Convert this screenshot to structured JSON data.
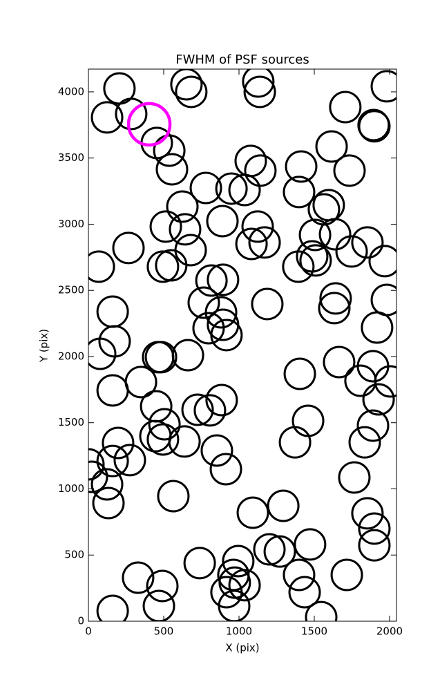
{
  "chart_data": {
    "type": "scatter",
    "title": "FWHM of PSF sources",
    "x_label": "X (pix)",
    "y_label": "Y (pix)",
    "xlim": [
      0,
      2046
    ],
    "ylim": [
      0,
      4172
    ],
    "xticks": [
      0,
      500,
      1000,
      1500,
      2000
    ],
    "yticks": [
      0,
      500,
      1000,
      1500,
      2000,
      2500,
      3000,
      3500,
      4000
    ],
    "series": [
      {
        "color": "#000000",
        "x": [
          206,
          124,
          284,
          454,
          537,
          555,
          651,
          683,
          1128,
          1138,
          1706,
          1894,
          1982,
          1615,
          1734,
          1413,
          1399,
          1596,
          1564,
          1078,
          1142,
          1037,
          950,
          780,
          624,
          514,
          642,
          679,
          890,
          1124,
          1083,
          1170,
          1505,
          1638,
          1853,
          1748,
          1968,
          1486,
          1509,
          1394,
          266,
          69,
          495,
          550,
          817,
          894,
          766,
          881,
          894,
          798,
          917,
          1188,
          161,
          174,
          78,
          463,
          482,
          661,
          1642,
          1633,
          1917,
          1982,
          1665,
          1890,
          1807,
          2005,
          1927,
          1404,
          161,
          349,
          450,
          505,
          445,
          495,
          638,
          725,
          807,
          885,
          1459,
          1372,
          1890,
          1835,
          197,
          161,
          275,
          0,
          23,
          124,
          133,
          564,
          853,
          913,
          1766,
          1092,
          1294,
          1853,
          1899,
          1899,
          1472,
          1202,
          1271,
          995,
          963,
          972,
          1037,
          917,
          968,
          739,
          330,
          491,
          468,
          161,
          1399,
          1436,
          1546,
          1716,
          1899
        ],
        "values": [
          4026,
          3807,
          3833,
          3614,
          3556,
          3415,
          4057,
          4000,
          4078,
          4000,
          3885,
          3749,
          4042,
          3587,
          3405,
          3436,
          3243,
          3144,
          3112,
          3478,
          3405,
          3258,
          3269,
          3274,
          3133,
          2982,
          2961,
          2804,
          3023,
          2982,
          2851,
          2862,
          2919,
          2924,
          2862,
          2794,
          2721,
          2757,
          2726,
          2679,
          2820,
          2679,
          2679,
          2689,
          2574,
          2580,
          2407,
          2334,
          2240,
          2214,
          2162,
          2397,
          2339,
          2115,
          2021,
          1995,
          1995,
          2010,
          2439,
          2366,
          2219,
          2428,
          1958,
          1927,
          1817,
          1812,
          1676,
          1869,
          1744,
          1807,
          1624,
          1488,
          1399,
          1373,
          1358,
          1598,
          1593,
          1671,
          1514,
          1352,
          1478,
          1352,
          1347,
          1211,
          1217,
          1185,
          1091,
          1034,
          893,
          945,
          1290,
          1149,
          1086,
          820,
          872,
          815,
          700,
          574,
          580,
          543,
          527,
          454,
          350,
          292,
          272,
          219,
          115,
          439,
          329,
          266,
          115,
          78,
          350,
          219,
          31,
          350,
          3740
        ]
      },
      {
        "color": "#ff00ff",
        "x": [
          404
        ],
        "values": [
          3755
        ]
      }
    ]
  }
}
